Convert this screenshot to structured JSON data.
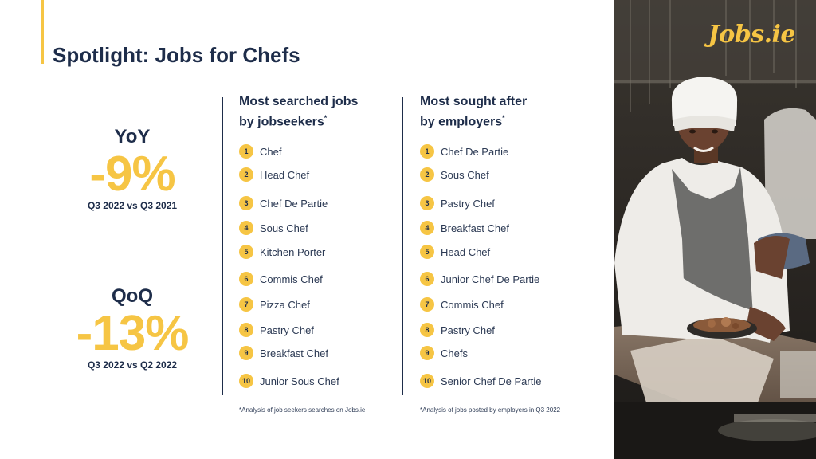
{
  "title": {
    "prefix": "Spotlight:",
    "bold": "Jobs for Chefs"
  },
  "stats": {
    "yoy": {
      "label": "YoY",
      "value": "-9%",
      "period": "Q3 2022 vs Q3 2021"
    },
    "qoq": {
      "label": "QoQ",
      "value": "-13%",
      "period": "Q3 2022 vs Q2 2022"
    }
  },
  "searched": {
    "heading_line1": "Most searched jobs",
    "heading_line2": "by jobseekers",
    "star": "*",
    "items": [
      {
        "rank": "1",
        "label": "Chef"
      },
      {
        "rank": "2",
        "label": "Head Chef"
      },
      {
        "rank": "3",
        "label": "Chef De Partie"
      },
      {
        "rank": "4",
        "label": "Sous Chef"
      },
      {
        "rank": "5",
        "label": "Kitchen Porter"
      },
      {
        "rank": "6",
        "label": "Commis Chef"
      },
      {
        "rank": "7",
        "label": "Pizza Chef"
      },
      {
        "rank": "8",
        "label": "Pastry Chef"
      },
      {
        "rank": "9",
        "label": "Breakfast Chef"
      },
      {
        "rank": "10",
        "label": "Junior Sous Chef"
      }
    ],
    "footnote": "*Analysis of job seekers searches on Jobs.ie"
  },
  "employers": {
    "heading_line1": "Most sought after",
    "heading_line2": "by employers",
    "star": "*",
    "items": [
      {
        "rank": "1",
        "label": "Chef De Partie"
      },
      {
        "rank": "2",
        "label": "Sous Chef"
      },
      {
        "rank": "3",
        "label": "Pastry Chef"
      },
      {
        "rank": "4",
        "label": "Breakfast Chef"
      },
      {
        "rank": "5",
        "label": "Head Chef"
      },
      {
        "rank": "6",
        "label": "Junior Chef De Partie"
      },
      {
        "rank": "7",
        "label": "Commis Chef"
      },
      {
        "rank": "8",
        "label": "Pastry Chef"
      },
      {
        "rank": "9",
        "label": "Chefs"
      },
      {
        "rank": "10",
        "label": "Senior Chef De Partie"
      }
    ],
    "footnote": "*Analysis of jobs posted by employers in Q3 2022"
  },
  "logo": {
    "text": "Jobs.ie"
  },
  "colors": {
    "accent": "#f6c544",
    "navy": "#1e2d4a"
  }
}
